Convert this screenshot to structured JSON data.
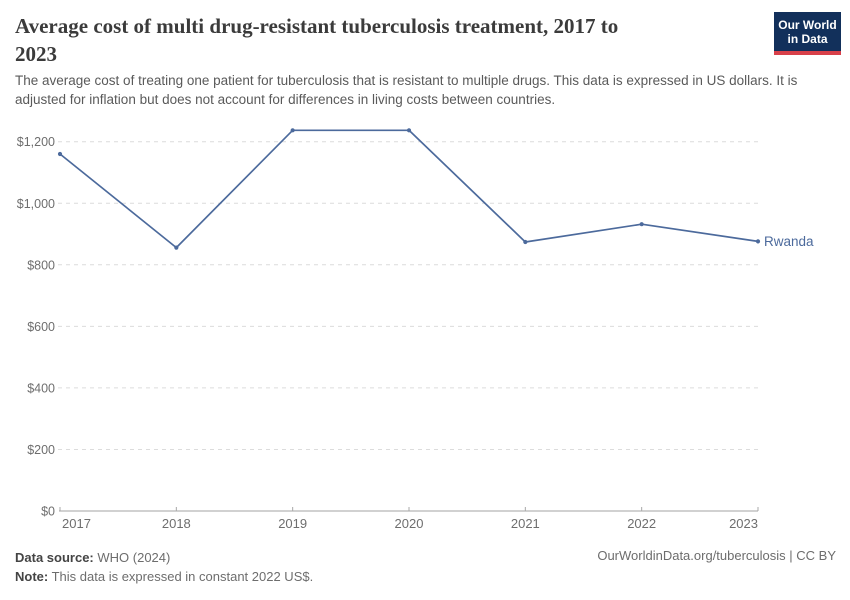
{
  "header": {
    "title": "Average cost of multi drug-resistant tuberculosis treatment, 2017 to\n2023",
    "subtitle": "The average cost of treating one patient for tuberculosis that is resistant to multiple drugs. This data is expressed in US dollars. It is adjusted for inflation but does not account for differences in living costs between countries."
  },
  "logo": {
    "line1": "Our World",
    "line2": "in Data",
    "bg_color": "#12305b",
    "accent_color": "#d8404a",
    "text_color": "#ffffff"
  },
  "chart_data": {
    "type": "line",
    "title": "Average cost of multi drug-resistant tuberculosis treatment, 2017 to 2023",
    "x": [
      2017,
      2018,
      2019,
      2020,
      2021,
      2022,
      2023
    ],
    "xticks": [
      "2017",
      "2018",
      "2019",
      "2020",
      "2021",
      "2022",
      "2023"
    ],
    "series": [
      {
        "name": "Rwanda",
        "values": [
          1160,
          856,
          1237,
          1237,
          874,
          932,
          876
        ],
        "color": "#4c6a9c"
      }
    ],
    "xlabel": "",
    "ylabel": "",
    "ylim": [
      0,
      1280
    ],
    "yticks": [
      {
        "value": 0,
        "label": "$0"
      },
      {
        "value": 200,
        "label": "$200"
      },
      {
        "value": 400,
        "label": "$400"
      },
      {
        "value": 600,
        "label": "$600"
      },
      {
        "value": 800,
        "label": "$800"
      },
      {
        "value": 1000,
        "label": "$1,000"
      },
      {
        "value": 1200,
        "label": "$1,200"
      }
    ],
    "grid": "horizontal-dashed",
    "legend_position": "end-of-line-label",
    "unit_prefix": "$",
    "grid_color": "#dcdcdc",
    "axis_color": "#a3a3a3",
    "tick_label_color": "#6e6e6e"
  },
  "footer": {
    "source_label": "Data source:",
    "source_value": "WHO (2024)",
    "note_label": "Note:",
    "note_value": "This data is expressed in constant 2022 US$.",
    "citation": "OurWorldinData.org/tuberculosis | CC BY"
  }
}
